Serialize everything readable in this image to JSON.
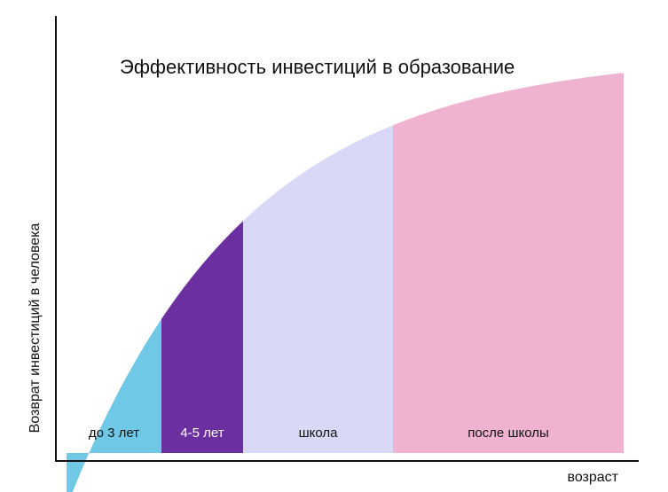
{
  "chart_data": {
    "type": "area",
    "title": "Эффективность инвестиций в образование",
    "xlabel": "возраст",
    "ylabel": "Возврат инвестиций в человека",
    "grid": false,
    "legend": "none",
    "curve": "decreasing exponential",
    "segments": [
      {
        "label": "до 3 лет",
        "color": "#6ec8e6",
        "label_color": "#111111"
      },
      {
        "label": "4-5 лет",
        "color": "#6b2fa0",
        "label_color": "#ffffff"
      },
      {
        "label": "школа",
        "color": "#d9d8f6",
        "label_color": "#111111"
      },
      {
        "label": "после школы",
        "color": "#efb3d1",
        "label_color": "#111111"
      }
    ]
  }
}
